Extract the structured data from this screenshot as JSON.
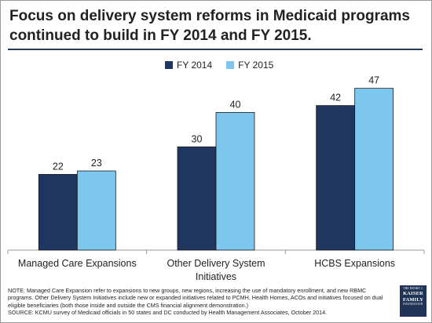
{
  "title": "Focus on delivery system reforms in Medicaid programs continued to build in FY 2014 and FY 2015.",
  "legend": [
    {
      "label": "FY 2014",
      "color": "#1f3660"
    },
    {
      "label": "FY 2015",
      "color": "#7dc7ee"
    }
  ],
  "chart_data": {
    "type": "bar",
    "categories": [
      "Managed Care Expansions",
      "Other Delivery System Initiatives",
      "HCBS Expansions"
    ],
    "series": [
      {
        "name": "FY 2014",
        "values": [
          22,
          30,
          42
        ],
        "color": "#1f3660"
      },
      {
        "name": "FY 2015",
        "values": [
          23,
          40,
          47
        ],
        "color": "#7dc7ee"
      }
    ],
    "title": "Focus on delivery system reforms in Medicaid programs continued to build in FY 2014 and FY 2015.",
    "xlabel": "",
    "ylabel": "",
    "ylim": [
      0,
      50
    ],
    "grid": false,
    "legend_position": "top"
  },
  "categories_display": [
    "Managed Care Expansions",
    "Other Delivery System\nInitiatives",
    "HCBS Expansions"
  ],
  "note": "NOTE: Managed Care Expansion refer to expansions to new groups, new regions, increasing the use of mandatory enrollment, and new RBMC programs. Other Delivery System Initiatives include new or expanded initiatives related to PCMH, Health Homes, ACOs and initiatives focused on dual eligible beneficiaries (both those inside and outside the CMS financial alignment demonstration.)",
  "source": "SOURCE: KCMU survey of Medicaid officials in 50 states and DC conducted by Health Management Associates, October 2014.",
  "logo": {
    "line1": "THE HENRY J.",
    "line2": "KAISER",
    "line3": "FAMILY",
    "line4": "FOUNDATION"
  }
}
